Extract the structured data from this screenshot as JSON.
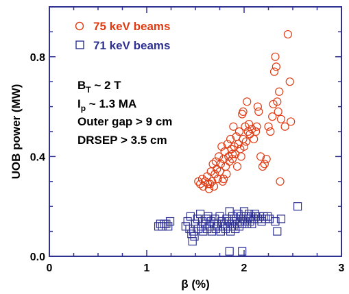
{
  "chart_data": {
    "type": "scatter",
    "xlabel": "β (%)",
    "ylabel": "UOB power (MW)",
    "xlim": [
      0,
      3
    ],
    "ylim": [
      0,
      1.0
    ],
    "x_ticks": [
      "0",
      "1",
      "2",
      "3"
    ],
    "y_ticks": [
      "0.0",
      "0.4",
      "0.8"
    ],
    "grid": false,
    "legend_position": "top-left",
    "annotations": {
      "line1_main": "B",
      "line1_sub": "T",
      "line1_rest": " ~ 2 T",
      "line2_main": "I",
      "line2_sub": "p",
      "line2_rest": " ~ 1.3 MA",
      "line3": "Outer gap > 9 cm",
      "line4": "DRSEP  > 3.5 cm"
    },
    "series": [
      {
        "name": "75 keV beams",
        "marker": "circle",
        "color": "#e03a12",
        "points": [
          [
            1.53,
            0.3
          ],
          [
            1.55,
            0.29
          ],
          [
            1.57,
            0.31
          ],
          [
            1.58,
            0.28
          ],
          [
            1.6,
            0.3
          ],
          [
            1.62,
            0.32
          ],
          [
            1.63,
            0.29
          ],
          [
            1.64,
            0.27
          ],
          [
            1.65,
            0.29
          ],
          [
            1.66,
            0.34
          ],
          [
            1.67,
            0.3
          ],
          [
            1.68,
            0.37
          ],
          [
            1.69,
            0.28
          ],
          [
            1.7,
            0.33
          ],
          [
            1.71,
            0.38
          ],
          [
            1.72,
            0.35
          ],
          [
            1.73,
            0.31
          ],
          [
            1.74,
            0.4
          ],
          [
            1.75,
            0.34
          ],
          [
            1.76,
            0.37
          ],
          [
            1.77,
            0.44
          ],
          [
            1.78,
            0.3
          ],
          [
            1.79,
            0.39
          ],
          [
            1.8,
            0.42
          ],
          [
            1.81,
            0.36
          ],
          [
            1.82,
            0.33
          ],
          [
            1.83,
            0.45
          ],
          [
            1.84,
            0.4
          ],
          [
            1.85,
            0.38
          ],
          [
            1.86,
            0.47
          ],
          [
            1.87,
            0.43
          ],
          [
            1.88,
            0.39
          ],
          [
            1.89,
            0.52
          ],
          [
            1.9,
            0.44
          ],
          [
            1.91,
            0.41
          ],
          [
            1.92,
            0.48
          ],
          [
            1.93,
            0.36
          ],
          [
            1.94,
            0.45
          ],
          [
            1.95,
            0.5
          ],
          [
            1.96,
            0.43
          ],
          [
            1.97,
            0.4
          ],
          [
            1.98,
            0.57
          ],
          [
            1.99,
            0.47
          ],
          [
            2.0,
            0.44
          ],
          [
            2.01,
            0.52
          ],
          [
            2.02,
            0.46
          ],
          [
            2.03,
            0.62
          ],
          [
            2.04,
            0.5
          ],
          [
            2.05,
            0.53
          ],
          [
            2.06,
            0.49
          ],
          [
            2.08,
            0.51
          ],
          [
            2.1,
            0.47
          ],
          [
            2.12,
            0.5
          ],
          [
            2.13,
            0.52
          ],
          [
            2.14,
            0.6
          ],
          [
            2.15,
            0.58
          ],
          [
            2.17,
            0.4
          ],
          [
            2.19,
            0.36
          ],
          [
            2.21,
            0.37
          ],
          [
            2.23,
            0.39
          ],
          [
            2.25,
            0.52
          ],
          [
            2.27,
            0.5
          ],
          [
            2.29,
            0.56
          ],
          [
            2.3,
            0.61
          ],
          [
            2.31,
            0.74
          ],
          [
            2.32,
            0.8
          ],
          [
            2.33,
            0.76
          ],
          [
            2.34,
            0.62
          ],
          [
            2.35,
            0.58
          ],
          [
            2.36,
            0.66
          ],
          [
            2.37,
            0.3
          ],
          [
            2.38,
            0.55
          ],
          [
            2.42,
            0.52
          ],
          [
            2.45,
            0.89
          ],
          [
            2.47,
            0.7
          ],
          [
            2.48,
            0.54
          ],
          [
            1.99,
            0.58
          ],
          [
            1.88,
            0.41
          ],
          [
            1.79,
            0.31
          ]
        ]
      },
      {
        "name": "71 keV beams",
        "marker": "square",
        "color": "#2e3192",
        "points": [
          [
            1.12,
            0.12
          ],
          [
            1.14,
            0.13
          ],
          [
            1.16,
            0.12
          ],
          [
            1.18,
            0.13
          ],
          [
            1.2,
            0.13
          ],
          [
            1.22,
            0.12
          ],
          [
            1.24,
            0.14
          ],
          [
            1.4,
            0.12
          ],
          [
            1.42,
            0.14
          ],
          [
            1.44,
            0.11
          ],
          [
            1.45,
            0.16
          ],
          [
            1.46,
            0.09
          ],
          [
            1.47,
            0.06
          ],
          [
            1.48,
            0.1
          ],
          [
            1.49,
            0.08
          ],
          [
            1.5,
            0.13
          ],
          [
            1.52,
            0.15
          ],
          [
            1.53,
            0.11
          ],
          [
            1.55,
            0.17
          ],
          [
            1.56,
            0.12
          ],
          [
            1.57,
            0.14
          ],
          [
            1.58,
            0.1
          ],
          [
            1.6,
            0.13
          ],
          [
            1.61,
            0.15
          ],
          [
            1.62,
            0.11
          ],
          [
            1.63,
            0.16
          ],
          [
            1.65,
            0.12
          ],
          [
            1.66,
            0.14
          ],
          [
            1.67,
            0.1
          ],
          [
            1.69,
            0.13
          ],
          [
            1.7,
            0.15
          ],
          [
            1.71,
            0.11
          ],
          [
            1.72,
            0.13
          ],
          [
            1.73,
            0.12
          ],
          [
            1.75,
            0.16
          ],
          [
            1.76,
            0.1
          ],
          [
            1.77,
            0.14
          ],
          [
            1.78,
            0.12
          ],
          [
            1.8,
            0.13
          ],
          [
            1.81,
            0.11
          ],
          [
            1.82,
            0.15
          ],
          [
            1.83,
            0.12
          ],
          [
            1.84,
            0.14
          ],
          [
            1.85,
            0.18
          ],
          [
            1.86,
            0.1
          ],
          [
            1.87,
            0.13
          ],
          [
            1.88,
            0.16
          ],
          [
            1.89,
            0.12
          ],
          [
            1.9,
            0.14
          ],
          [
            1.91,
            0.11
          ],
          [
            1.92,
            0.15
          ],
          [
            1.93,
            0.13
          ],
          [
            1.94,
            0.17
          ],
          [
            1.95,
            0.12
          ],
          [
            1.96,
            0.14
          ],
          [
            1.97,
            0.16
          ],
          [
            1.98,
            0.13
          ],
          [
            1.99,
            0.15
          ],
          [
            2.0,
            0.18
          ],
          [
            2.01,
            0.14
          ],
          [
            2.02,
            0.16
          ],
          [
            2.03,
            0.13
          ],
          [
            2.04,
            0.15
          ],
          [
            2.05,
            0.17
          ],
          [
            2.06,
            0.14
          ],
          [
            2.07,
            0.16
          ],
          [
            2.08,
            0.13
          ],
          [
            2.1,
            0.15
          ],
          [
            2.11,
            0.17
          ],
          [
            2.12,
            0.16
          ],
          [
            2.14,
            0.15
          ],
          [
            2.16,
            0.16
          ],
          [
            2.18,
            0.14
          ],
          [
            2.2,
            0.16
          ],
          [
            2.22,
            0.15
          ],
          [
            2.24,
            0.16
          ],
          [
            2.26,
            0.15
          ],
          [
            2.32,
            0.14
          ],
          [
            2.38,
            0.15
          ],
          [
            2.55,
            0.2
          ],
          [
            1.85,
            0.02
          ],
          [
            1.98,
            0.02
          ],
          [
            2.34,
            0.1
          ]
        ]
      }
    ]
  }
}
